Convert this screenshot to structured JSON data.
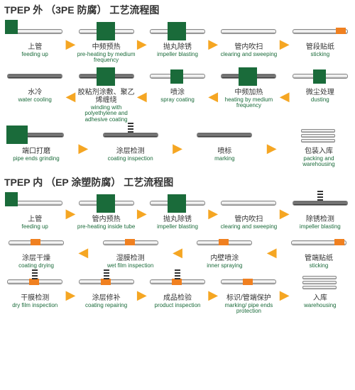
{
  "colors": {
    "title": "#333333",
    "cn_text": "#333333",
    "en_text": "#1a6b3a",
    "green_block": "#1a6b3a",
    "arrow": "#f5a623",
    "orange": "#f08020",
    "pipe_light": "#dddddd",
    "pipe_dark": "#555555",
    "background": "#ffffff"
  },
  "fonts": {
    "title_size": 14,
    "cn_size": 10,
    "en_size": 8
  },
  "section1": {
    "title": "TPEP 外 （3PE 防腐） 工艺流程图",
    "rows": [
      [
        {
          "cn": "上管",
          "en": "feeding up",
          "icon": "feed"
        },
        {
          "cn": "中频预热",
          "en": "pre-heating by medium frequency",
          "icon": "green"
        },
        {
          "cn": "抛丸除锈",
          "en": "impeller blasting",
          "icon": "green"
        },
        {
          "cn": "管内吹扫",
          "en": "clearing and sweeping",
          "icon": "pipe"
        },
        {
          "cn": "管段贴纸",
          "en": "sticking",
          "icon": "orange"
        }
      ],
      [
        {
          "cn": "水冷",
          "en": "water cooling",
          "icon": "dark"
        },
        {
          "cn": "胶粘剂涂敷、聚乙烯缠绕",
          "en": "winding with polyethylene and adhesive coating",
          "icon": "green-dark"
        },
        {
          "cn": "喷涂",
          "en": "spray coating",
          "icon": "green-sm"
        },
        {
          "cn": "中频加热",
          "en": "heating by medium frequency",
          "icon": "green-dark"
        },
        {
          "cn": "微尘处理",
          "en": "dusting",
          "icon": "green-sm"
        }
      ],
      [
        {
          "cn": "端口打磨",
          "en": "pipe ends grinding",
          "icon": "grind"
        },
        {
          "cn": "涂层检测",
          "en": "coating inspection",
          "icon": "spring"
        },
        {
          "cn": "喷标",
          "en": "marking",
          "icon": "dark"
        },
        {
          "cn": "包装入库",
          "en": "packing and warehousing",
          "icon": "stack"
        }
      ]
    ]
  },
  "section2": {
    "title": "TPEP 内 （EP 涂塑防腐） 工艺流程图",
    "rows": [
      [
        {
          "cn": "上管",
          "en": "feeding up",
          "icon": "feed"
        },
        {
          "cn": "管内预热",
          "en": "pre-heating inside tube",
          "icon": "green"
        },
        {
          "cn": "抛丸除锈",
          "en": "impeller blasting",
          "icon": "green"
        },
        {
          "cn": "管内吹扫",
          "en": "clearing and sweeping",
          "icon": "pipe"
        },
        {
          "cn": "除锈检测",
          "en": "impeller blasting",
          "icon": "spring"
        }
      ],
      [
        {
          "cn": "涂层干燥",
          "en": "coating drying",
          "icon": "orange-pipe"
        },
        {
          "cn": "湿膜检测",
          "en": "wet film inspection",
          "icon": "orange-pipe"
        },
        {
          "cn": "内壁喷涂",
          "en": "inner spraying",
          "icon": "orange-pipe"
        },
        {
          "cn": "管端贴纸",
          "en": "sticking",
          "icon": "orange"
        }
      ],
      [
        {
          "cn": "干膜检测",
          "en": "dry film inspection",
          "icon": "spring-o"
        },
        {
          "cn": "涂层修补",
          "en": "coating repairing",
          "icon": "spring-o"
        },
        {
          "cn": "成品检验",
          "en": "product inspection",
          "icon": "spring-o"
        },
        {
          "cn": "标识/管端保护",
          "en": "marking/ pipe ends protection",
          "icon": "orange-pipe"
        },
        {
          "cn": "入库",
          "en": "warehousing",
          "icon": "stack"
        }
      ]
    ]
  },
  "flow_direction": {
    "section1": [
      "right",
      "left",
      "right"
    ],
    "section2": [
      "right",
      "left",
      "right"
    ]
  },
  "arrow_glyphs": {
    "right": "▶",
    "left": "◀"
  }
}
